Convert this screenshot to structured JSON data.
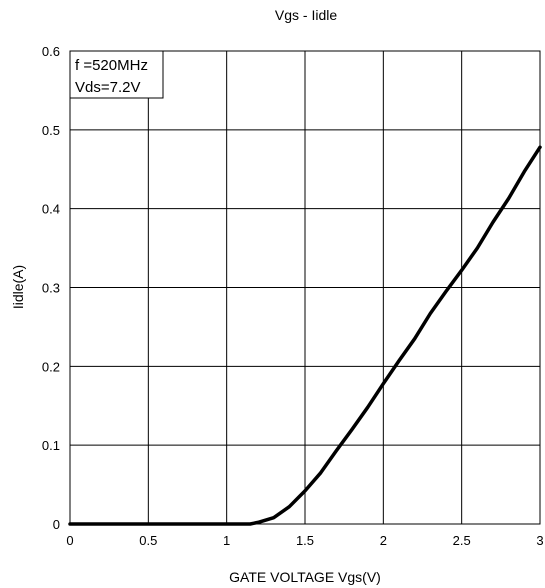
{
  "chart_data": {
    "type": "line",
    "title": "Vgs - Iidle",
    "xlabel": "GATE VOLTAGE Vgs(V)",
    "ylabel": "Iidle(A)",
    "xlim": [
      0,
      3
    ],
    "ylim": [
      0,
      0.6
    ],
    "xticks": [
      0,
      0.5,
      1,
      1.5,
      2,
      2.5,
      3
    ],
    "xtick_labels": [
      "0",
      "0.5",
      "1",
      "1.5",
      "2",
      "2.5",
      "3"
    ],
    "yticks": [
      0,
      0.1,
      0.2,
      0.3,
      0.4,
      0.5,
      0.6
    ],
    "ytick_labels": [
      "0",
      "0.1",
      "0.2",
      "0.3",
      "0.4",
      "0.5",
      "0.6"
    ],
    "grid": true,
    "legend": "none",
    "annotation": {
      "lines": [
        "f =520MHz",
        "Vds=7.2V"
      ],
      "placement": "top-left"
    },
    "series": [
      {
        "x": [
          0,
          0.5,
          1.0,
          1.15,
          1.2,
          1.3,
          1.4,
          1.5,
          1.6,
          1.7,
          1.8,
          1.9,
          2.0,
          2.1,
          2.2,
          2.3,
          2.4,
          2.5,
          2.6,
          2.7,
          2.8,
          2.9,
          3.0
        ],
        "y": [
          0,
          0,
          0,
          0,
          0.002,
          0.008,
          0.022,
          0.042,
          0.065,
          0.093,
          0.12,
          0.148,
          0.178,
          0.207,
          0.235,
          0.267,
          0.295,
          0.322,
          0.35,
          0.383,
          0.413,
          0.447,
          0.478
        ],
        "color": "#000000"
      }
    ]
  }
}
